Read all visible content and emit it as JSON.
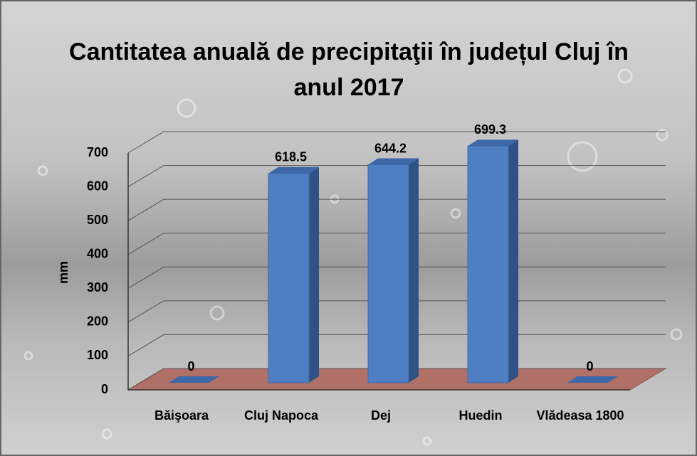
{
  "chart_data": {
    "type": "bar3d",
    "title": "Cantitatea anuală de precipitaţii în județul Cluj în anul 2017",
    "y_label": "mm",
    "categories": [
      "Băişoara",
      "Cluj Napoca",
      "Dej",
      "Huedin",
      "Vlădeasa 1800"
    ],
    "values": [
      0,
      618.5,
      644.2,
      699.3,
      0
    ],
    "color": "#4f7ec3",
    "floor_color": "#b07068",
    "ylim": [
      0,
      700
    ],
    "yticks": [
      0,
      100,
      200,
      300,
      400,
      500,
      600,
      700
    ],
    "grid": true
  }
}
